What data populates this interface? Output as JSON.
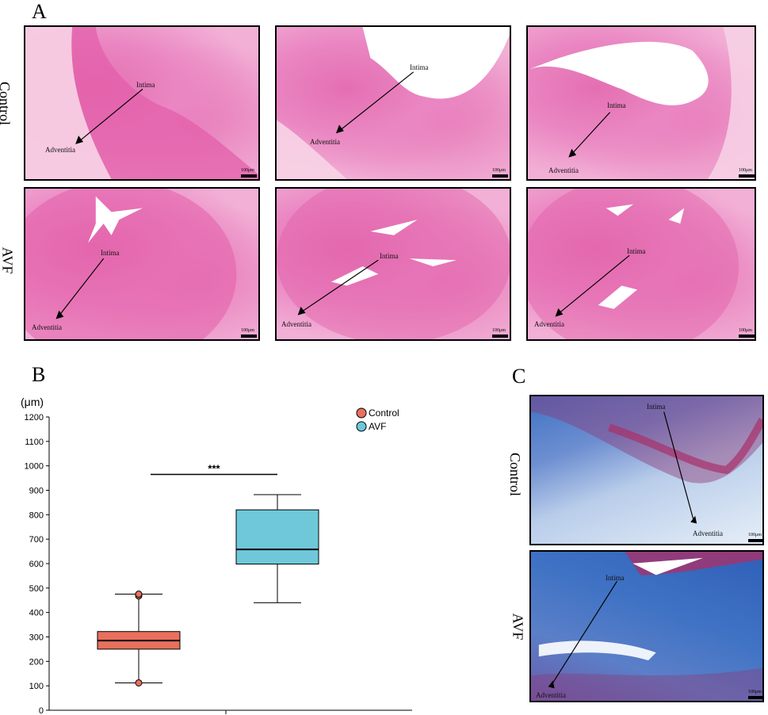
{
  "panels": {
    "A": {
      "letter": "A",
      "rows": [
        "Control",
        "AVF"
      ],
      "images": [
        {
          "intima": "Intima",
          "adventitia": "Adventitia",
          "scale": "100μm"
        },
        {
          "intima": "Intima",
          "adventitia": "Adventitia",
          "scale": "100μm"
        },
        {
          "intima": "Intima",
          "adventitia": "Adventitia",
          "scale": "100μm"
        },
        {
          "intima": "Intima",
          "adventitia": "Adventitia",
          "scale": "100μm"
        },
        {
          "intima": "Intima",
          "adventitia": "Adventitia",
          "scale": "100μm"
        },
        {
          "intima": "Intima",
          "adventitia": "Adventitia",
          "scale": "100μm"
        }
      ]
    },
    "B": {
      "letter": "B"
    },
    "C": {
      "letter": "C",
      "rows": [
        "Control",
        "AVF"
      ],
      "images": [
        {
          "intima": "Intima",
          "adventitia": "Adventitia",
          "scale": "100μm"
        },
        {
          "intima": "Intima",
          "adventitia": "Adventitia",
          "scale": "100μm"
        }
      ]
    }
  },
  "colors": {
    "control": "#e8705c",
    "avf": "#6ec8da",
    "he_pink": "#ea86c2",
    "masson_blue": "#3f72c4",
    "masson_red": "#a8316a"
  },
  "chart_data": {
    "type": "box",
    "unit_label": "(μm)",
    "ylim": [
      0,
      1200
    ],
    "yticks": [
      0,
      100,
      200,
      300,
      400,
      500,
      600,
      700,
      800,
      900,
      1000,
      1100,
      1200
    ],
    "series": [
      {
        "name": "Control",
        "color": "#e8705c",
        "whisker_low": 112,
        "q1": 250,
        "median": 285,
        "q3": 322,
        "whisker_high": 475,
        "outliers": [
          112,
          468,
          475
        ]
      },
      {
        "name": "AVF",
        "color": "#6ec8da",
        "whisker_low": 440,
        "q1": 598,
        "median": 658,
        "q3": 820,
        "whisker_high": 882,
        "outliers": []
      }
    ],
    "significance": {
      "label": "***",
      "y": 965
    },
    "legend_position": "top-right"
  }
}
